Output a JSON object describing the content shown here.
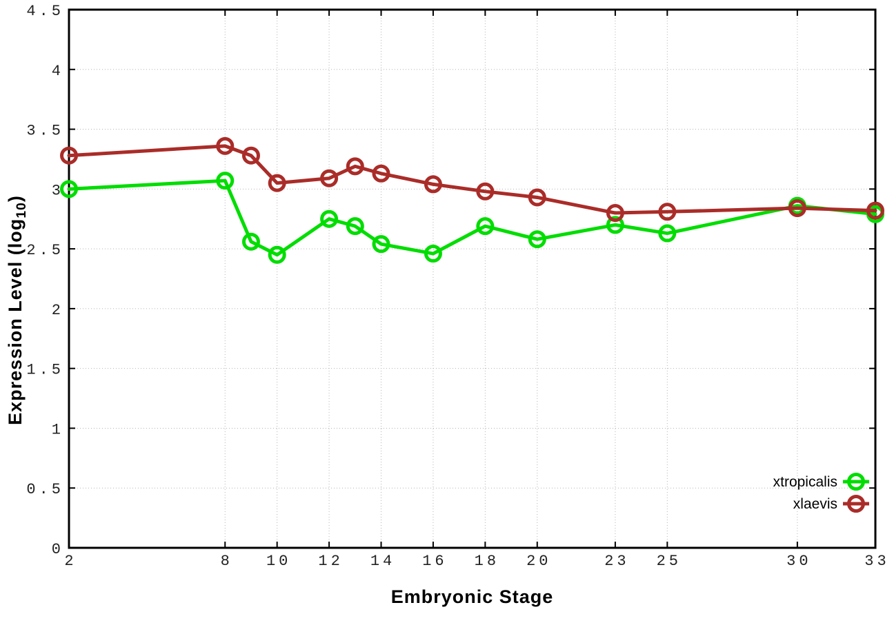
{
  "chart_data": {
    "type": "line",
    "title": "",
    "xlabel": "Embryonic Stage",
    "ylabel": "Expression Level (log10)",
    "ylabel_parts": {
      "main": "Expression Level (log",
      "sub": "10",
      "end": ")"
    },
    "xlim": [
      2,
      33
    ],
    "ylim": [
      0,
      4.5
    ],
    "grid": true,
    "x_ticks": [
      2,
      8,
      10,
      12,
      14,
      16,
      18,
      20,
      23,
      25,
      30,
      33
    ],
    "x_tick_labels": [
      "2",
      "8",
      "10",
      "12",
      "14",
      "16",
      "18",
      "20",
      "23",
      "25",
      "30",
      "33"
    ],
    "y_ticks": [
      0,
      0.5,
      1,
      1.5,
      2,
      2.5,
      3,
      3.5,
      4,
      4.5
    ],
    "y_tick_labels": [
      "0",
      "0.5",
      "1",
      "1.5",
      "2",
      "2.5",
      "3",
      "3.5",
      "4",
      "4.5"
    ],
    "x": [
      2,
      8,
      9,
      10,
      12,
      13,
      14,
      16,
      18,
      20,
      23,
      25,
      30,
      33
    ],
    "series": [
      {
        "name": "xtropicalis",
        "color": "#00dd00",
        "marker": "open-circle",
        "values": [
          3.0,
          3.07,
          2.56,
          2.45,
          2.75,
          2.69,
          2.54,
          2.46,
          2.69,
          2.58,
          2.7,
          2.63,
          2.86,
          2.79
        ]
      },
      {
        "name": "xlaevis",
        "color": "#aa2c28",
        "marker": "open-circle",
        "values": [
          3.28,
          3.36,
          3.28,
          3.05,
          3.09,
          3.19,
          3.13,
          3.04,
          2.98,
          2.93,
          2.8,
          2.81,
          2.84,
          2.82
        ]
      }
    ],
    "legend_position": "bottom-right"
  },
  "style": {
    "background": "#ffffff",
    "grid_color": "#b4b4b4",
    "border_color": "#000000",
    "tick_label_color": "#222222"
  }
}
